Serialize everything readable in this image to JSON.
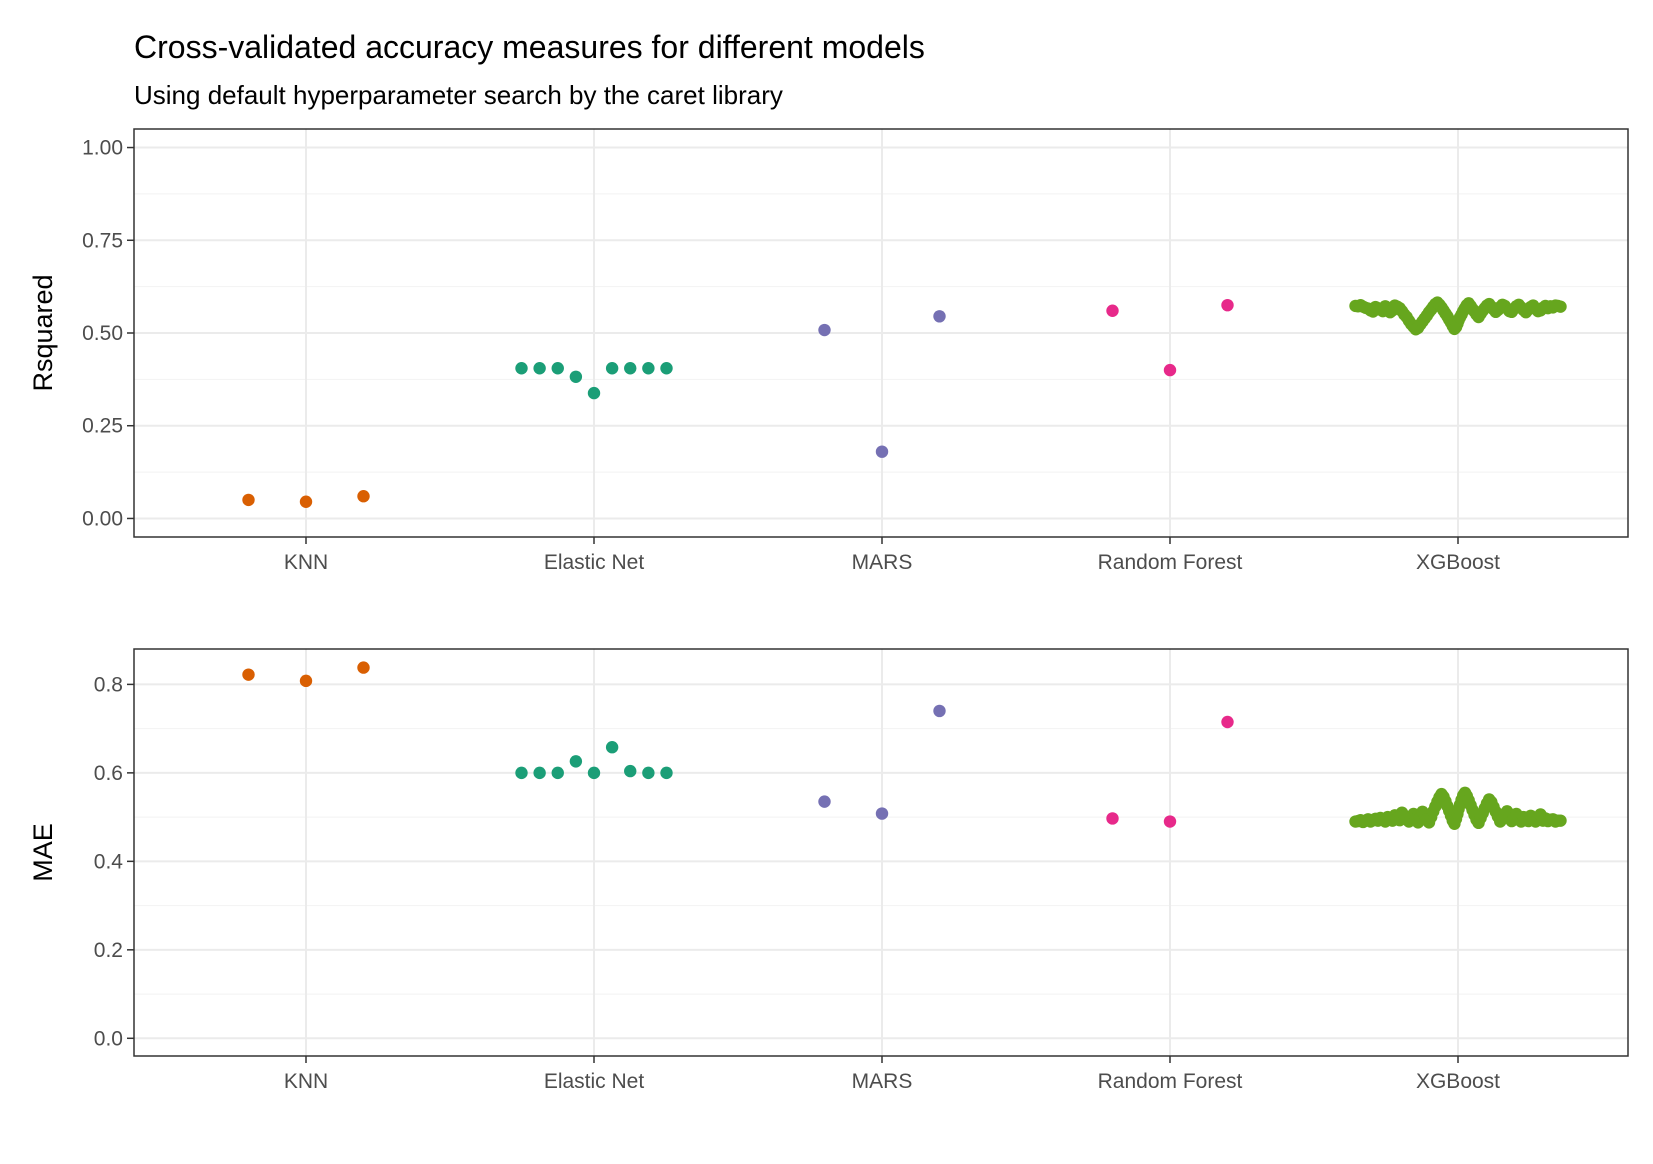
{
  "chart_data": {
    "type": "scatter",
    "title": "Cross-validated accuracy measures for different models",
    "subtitle": "Using default hyperparameter search by the caret library",
    "categories": [
      "KNN",
      "Elastic Net",
      "MARS",
      "Random Forest",
      "XGBoost"
    ],
    "colors": {
      "KNN": "#D95F02",
      "Elastic Net": "#1B9E77",
      "MARS": "#7570B3",
      "Random Forest": "#E7298A",
      "XGBoost": "#66A61E"
    },
    "grid": true,
    "legend": "none",
    "panels": [
      {
        "ylabel": "Rsquared",
        "ylim": [
          -0.05,
          1.05
        ],
        "yticks": [
          0.0,
          0.25,
          0.5,
          0.75,
          1.0
        ],
        "ytick_labels": [
          "0.00",
          "0.25",
          "0.50",
          "0.75",
          "1.00"
        ],
        "points": {
          "KNN": [
            0.05,
            0.045,
            0.06
          ],
          "Elastic Net": [
            0.405,
            0.405,
            0.405,
            0.382,
            0.338,
            0.405,
            0.405,
            0.405,
            0.405
          ],
          "MARS": [
            0.508,
            0.18,
            0.545
          ],
          "Random Forest": [
            0.56,
            0.4,
            0.575
          ],
          "XGBoost": [
            0.573,
            0.572,
            0.575,
            0.571,
            0.568,
            0.566,
            0.561,
            0.558,
            0.57,
            0.567,
            0.563,
            0.559,
            0.572,
            0.566,
            0.556,
            0.561,
            0.574,
            0.571,
            0.567,
            0.559,
            0.55,
            0.543,
            0.533,
            0.524,
            0.517,
            0.51,
            0.514,
            0.523,
            0.531,
            0.539,
            0.547,
            0.556,
            0.563,
            0.571,
            0.578,
            0.582,
            0.576,
            0.569,
            0.561,
            0.553,
            0.545,
            0.536,
            0.528,
            0.519,
            0.511,
            0.516,
            0.525,
            0.534,
            0.542,
            0.55,
            0.559,
            0.567,
            0.575,
            0.58,
            0.573,
            0.565,
            0.558,
            0.55,
            0.543,
            0.552,
            0.56,
            0.567,
            0.574,
            0.578,
            0.571,
            0.564,
            0.557,
            0.562,
            0.57,
            0.576,
            0.573,
            0.566,
            0.559,
            0.557,
            0.565,
            0.572,
            0.576,
            0.569,
            0.562,
            0.556,
            0.563,
            0.57,
            0.574,
            0.566,
            0.559,
            0.561,
            0.568,
            0.573,
            0.567,
            0.572,
            0.569,
            0.574,
            0.573,
            0.571
          ]
        }
      },
      {
        "ylabel": "MAE",
        "ylim": [
          -0.04,
          0.88
        ],
        "yticks": [
          0.0,
          0.2,
          0.4,
          0.6,
          0.8
        ],
        "ytick_labels": [
          "0.0",
          "0.2",
          "0.4",
          "0.6",
          "0.8"
        ],
        "points": {
          "KNN": [
            0.822,
            0.808,
            0.838
          ],
          "Elastic Net": [
            0.6,
            0.6,
            0.6,
            0.626,
            0.6,
            0.658,
            0.604,
            0.6,
            0.6
          ],
          "MARS": [
            0.535,
            0.508,
            0.74
          ],
          "Random Forest": [
            0.497,
            0.49,
            0.715
          ],
          "XGBoost": [
            0.49,
            0.491,
            0.493,
            0.489,
            0.492,
            0.495,
            0.49,
            0.493,
            0.496,
            0.492,
            0.498,
            0.494,
            0.49,
            0.5,
            0.496,
            0.492,
            0.504,
            0.498,
            0.493,
            0.51,
            0.503,
            0.496,
            0.49,
            0.5,
            0.507,
            0.496,
            0.488,
            0.5,
            0.512,
            0.504,
            0.495,
            0.488,
            0.5,
            0.513,
            0.524,
            0.535,
            0.545,
            0.552,
            0.546,
            0.536,
            0.525,
            0.514,
            0.503,
            0.492,
            0.485,
            0.496,
            0.507,
            0.518,
            0.528,
            0.539,
            0.549,
            0.555,
            0.548,
            0.538,
            0.527,
            0.516,
            0.505,
            0.494,
            0.487,
            0.498,
            0.509,
            0.52,
            0.531,
            0.54,
            0.534,
            0.523,
            0.512,
            0.501,
            0.49,
            0.496,
            0.507,
            0.513,
            0.502,
            0.491,
            0.497,
            0.507,
            0.498,
            0.49,
            0.5,
            0.496,
            0.491,
            0.503,
            0.494,
            0.49,
            0.497,
            0.506,
            0.492,
            0.497,
            0.491,
            0.494,
            0.495,
            0.49,
            0.492,
            0.492
          ]
        }
      }
    ]
  }
}
